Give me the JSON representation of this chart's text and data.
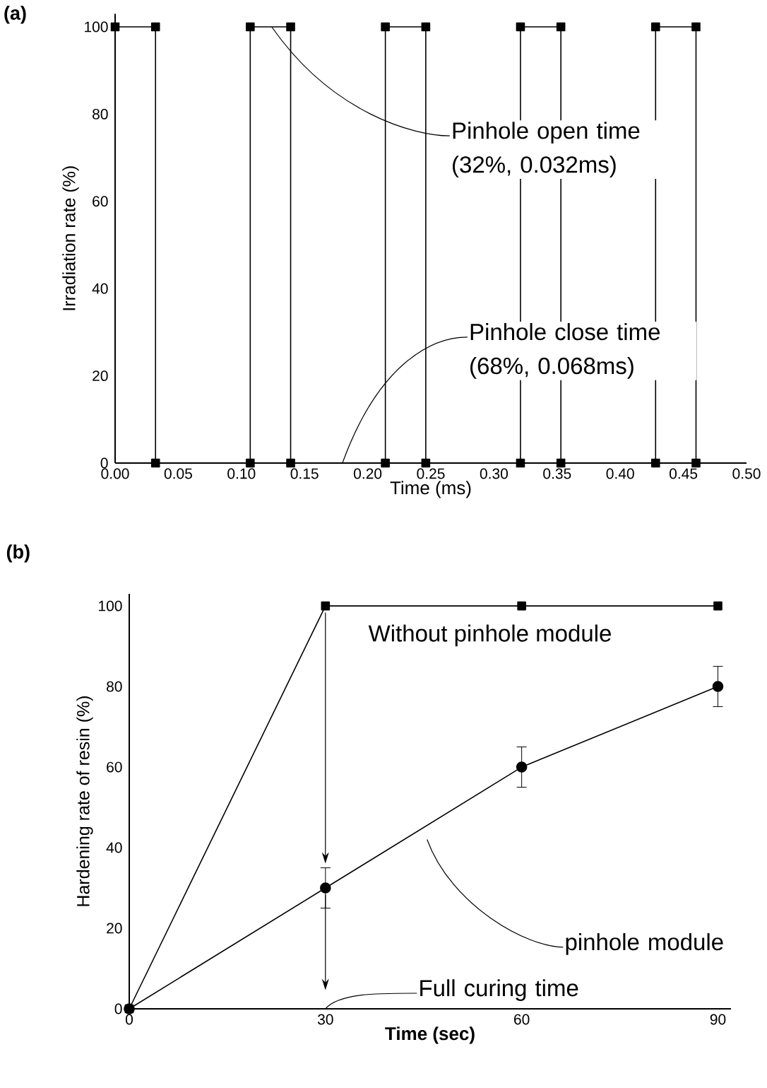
{
  "chart_data": [
    {
      "type": "line",
      "title": "(a)",
      "xlabel": "Time (ms)",
      "ylabel": "Irradiation rate (%)",
      "x": [
        0,
        0.032,
        0.032,
        0.107,
        0.107,
        0.139,
        0.139,
        0.214,
        0.214,
        0.246,
        0.246,
        0.321,
        0.321,
        0.353,
        0.353,
        0.428,
        0.428,
        0.46,
        0.46
      ],
      "series": [
        {
          "color": "#000000",
          "marker": "square",
          "values": [
            100,
            100,
            0,
            0,
            100,
            100,
            0,
            0,
            100,
            100,
            0,
            0,
            100,
            100,
            0,
            0,
            100,
            100,
            0
          ]
        }
      ],
      "xlim": [
        0,
        0.5
      ],
      "ylim": [
        0,
        103
      ],
      "xticks": [
        {
          "value": 0,
          "label": "0.00"
        },
        {
          "value": 0.05,
          "label": "0.05"
        },
        {
          "value": 0.1,
          "label": "0.10"
        },
        {
          "value": 0.15,
          "label": "0.15"
        },
        {
          "value": 0.2,
          "label": "0.20"
        },
        {
          "value": 0.25,
          "label": "0.25"
        },
        {
          "value": 0.3,
          "label": "0.30"
        },
        {
          "value": 0.35,
          "label": "0.35"
        },
        {
          "value": 0.4,
          "label": "0.40"
        },
        {
          "value": 0.45,
          "label": "0.45"
        },
        {
          "value": 0.5,
          "label": "0.50"
        }
      ],
      "yticks": [
        0,
        20,
        40,
        60,
        80,
        100
      ],
      "annotations": [
        {
          "text": "Pinhole open time (32%, 0.032ms)",
          "x": 0.124,
          "y": 100
        },
        {
          "text": "Pinhole close time (68%, 0.068ms)",
          "x": 0.18,
          "y": 0
        }
      ]
    },
    {
      "type": "line",
      "title": "(b)",
      "xlabel": "Time (sec)",
      "ylabel": "Hardening rate of resin (%)",
      "x": [
        0,
        30,
        60,
        90
      ],
      "series": [
        {
          "name": "Without pinhole module",
          "color": "#000000",
          "marker": "square",
          "values": [
            0,
            100,
            100,
            100
          ]
        },
        {
          "color": "#000000",
          "marker": "circle",
          "values": [
            0,
            30,
            60,
            80
          ],
          "errors": [
            null,
            5,
            5,
            5
          ]
        }
      ],
      "xlim": [
        0,
        92
      ],
      "ylim": [
        0,
        103
      ],
      "xticks": [
        0,
        30,
        60,
        90
      ],
      "yticks": [
        0,
        20,
        40,
        60,
        80,
        100
      ],
      "annotations": [
        "pinhole module",
        "Full curing time"
      ]
    }
  ]
}
